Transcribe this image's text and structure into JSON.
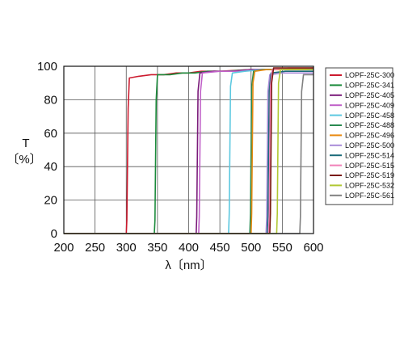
{
  "chart_data": {
    "type": "line",
    "title": "",
    "xlabel": "λ〔nm〕",
    "ylabel_line1": "T",
    "ylabel_line2": "〔%〕",
    "xlim": [
      200,
      600
    ],
    "ylim": [
      0,
      100
    ],
    "x_ticks": [
      200,
      250,
      300,
      350,
      400,
      450,
      500,
      550,
      600
    ],
    "y_ticks": [
      0,
      20,
      40,
      60,
      80,
      100
    ],
    "x_tick_labels": [
      "200",
      "250",
      "300",
      "350",
      "400",
      "450",
      "500",
      "550",
      "600"
    ],
    "y_tick_labels": [
      "0",
      "20",
      "40",
      "60",
      "80",
      "100"
    ],
    "grid": true,
    "legend_position": "right",
    "series": [
      {
        "name": "LOPF-25C-300",
        "color": "#cc1a2e",
        "x": [
          200,
          300,
          301,
          303,
          305,
          320,
          340,
          360,
          380,
          400,
          420,
          450,
          500,
          550,
          600
        ],
        "y": [
          0,
          0,
          8,
          75,
          93,
          94,
          95,
          95,
          96,
          96,
          97,
          97,
          98,
          98,
          98
        ]
      },
      {
        "name": "LOPF-25C-341",
        "color": "#1a8a3a",
        "x": [
          200,
          345,
          346,
          348,
          350,
          370,
          390,
          410,
          430,
          460,
          500,
          550,
          600
        ],
        "y": [
          0,
          0,
          8,
          80,
          95,
          95,
          96,
          96,
          97,
          97,
          98,
          98,
          98
        ]
      },
      {
        "name": "LOPF-25C-405",
        "color": "#7a1a7a",
        "x": [
          200,
          412,
          413,
          415,
          418,
          440,
          470,
          500,
          550,
          600
        ],
        "y": [
          0,
          0,
          10,
          85,
          96,
          97,
          97,
          98,
          98,
          98
        ]
      },
      {
        "name": "LOPF-25C-409",
        "color": "#c060c8",
        "x": [
          200,
          416,
          417,
          419,
          422,
          450,
          480,
          510,
          550,
          600
        ],
        "y": [
          0,
          0,
          10,
          85,
          96,
          97,
          97,
          98,
          98,
          98
        ]
      },
      {
        "name": "LOPF-25C-458",
        "color": "#5cc8e0",
        "x": [
          200,
          464,
          465,
          467,
          470,
          490,
          520,
          550,
          600
        ],
        "y": [
          0,
          0,
          12,
          88,
          96,
          97,
          98,
          98,
          99
        ]
      },
      {
        "name": "LOPF-25C-488",
        "color": "#2a8a50",
        "x": [
          200,
          498,
          499,
          501,
          504,
          520,
          550,
          600
        ],
        "y": [
          0,
          0,
          12,
          88,
          97,
          98,
          98,
          99
        ]
      },
      {
        "name": "LOPF-25C-496",
        "color": "#e88a10",
        "x": [
          200,
          500,
          501,
          503,
          506,
          525,
          550,
          600
        ],
        "y": [
          0,
          0,
          12,
          90,
          97,
          98,
          98,
          99
        ]
      },
      {
        "name": "LOPF-25C-500",
        "color": "#a88ad8",
        "x": [
          200,
          524,
          525,
          527,
          530,
          550,
          580,
          600
        ],
        "y": [
          0,
          0,
          10,
          85,
          95,
          96,
          96,
          96
        ]
      },
      {
        "name": "LOPF-25C-514",
        "color": "#1a6a7a",
        "x": [
          200,
          526,
          527,
          529,
          532,
          555,
          580,
          600
        ],
        "y": [
          0,
          0,
          10,
          85,
          96,
          97,
          97,
          97
        ]
      },
      {
        "name": "LOPF-25C-515",
        "color": "#f080b8",
        "x": [
          200,
          528,
          529,
          531,
          534,
          560,
          600
        ],
        "y": [
          0,
          0,
          10,
          88,
          98,
          99,
          99
        ]
      },
      {
        "name": "LOPF-25C-519",
        "color": "#7a1a10",
        "x": [
          200,
          530,
          531,
          533,
          536,
          560,
          600
        ],
        "y": [
          0,
          0,
          12,
          90,
          99,
          99,
          99
        ]
      },
      {
        "name": "LOPF-25C-532",
        "color": "#b0c832",
        "x": [
          200,
          541,
          542,
          544,
          547,
          570,
          600
        ],
        "y": [
          0,
          0,
          12,
          90,
          98,
          98,
          98
        ]
      },
      {
        "name": "LOPF-25C-561",
        "color": "#808080",
        "x": [
          200,
          578,
          579,
          581,
          584,
          600
        ],
        "y": [
          0,
          0,
          10,
          85,
          95,
          95
        ]
      }
    ]
  }
}
